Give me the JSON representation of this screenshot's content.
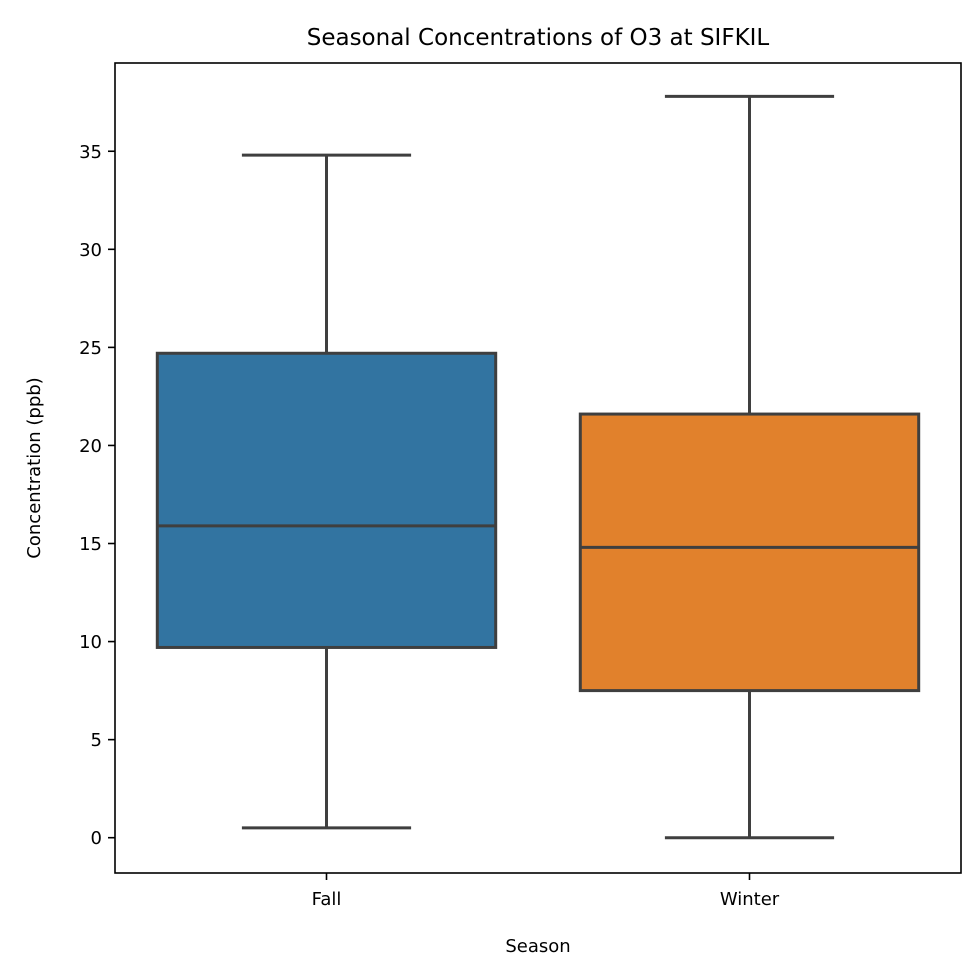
{
  "chart_data": {
    "type": "box",
    "title": "Seasonal Concentrations of O3 at SIFKIL",
    "xlabel": "Season",
    "ylabel": "Concentration (ppb)",
    "categories": [
      "Fall",
      "Winter"
    ],
    "ylim": [
      -1.8,
      39.5
    ],
    "yticks": [
      0,
      5,
      10,
      15,
      20,
      25,
      30,
      35
    ],
    "grid": false,
    "boxes": [
      {
        "category": "Fall",
        "whisker_low": 0.5,
        "q1": 9.7,
        "median": 15.9,
        "q3": 24.7,
        "whisker_high": 34.8,
        "color": "#3274a1"
      },
      {
        "category": "Winter",
        "whisker_low": 0.0,
        "q1": 7.5,
        "median": 14.8,
        "q3": 21.6,
        "whisker_high": 37.8,
        "color": "#e1812c"
      }
    ],
    "line_color": "#3f3f3f"
  }
}
